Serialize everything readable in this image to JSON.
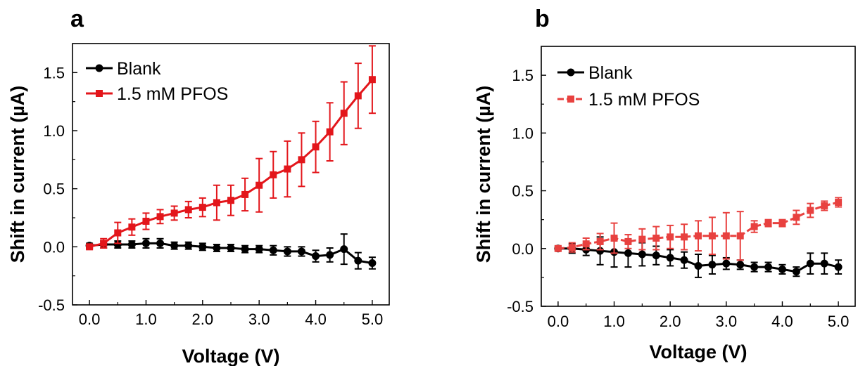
{
  "chart_data": [
    {
      "panel": "a",
      "type": "line",
      "xlabel": "Voltage (V)",
      "ylabel": "Shift in current (µA)",
      "xlim": [
        -0.3,
        5.3
      ],
      "ylim": [
        -0.5,
        1.75
      ],
      "xticks": [
        0,
        1,
        2,
        3,
        4,
        5
      ],
      "xtick_labels": [
        "0.0",
        "1.0",
        "2.0",
        "3.0",
        "4.0",
        "5.0"
      ],
      "yticks": [
        -0.5,
        0,
        0.5,
        1,
        1.5
      ],
      "ytick_labels": [
        "-0.5",
        "0.0",
        "0.5",
        "1.0",
        "1.5"
      ],
      "legend_position": "top-left",
      "x": [
        0,
        0.25,
        0.5,
        0.75,
        1.0,
        1.25,
        1.5,
        1.75,
        2.0,
        2.25,
        2.5,
        2.75,
        3.0,
        3.25,
        3.5,
        3.75,
        4.0,
        4.25,
        4.5,
        4.75,
        5.0
      ],
      "series": [
        {
          "name": "Blank",
          "color": "#000000",
          "marker": "circle",
          "values": [
            0.01,
            0.02,
            0.02,
            0.02,
            0.03,
            0.03,
            0.01,
            0.01,
            0.0,
            -0.01,
            -0.01,
            -0.02,
            -0.02,
            -0.03,
            -0.04,
            -0.04,
            -0.08,
            -0.07,
            -0.02,
            -0.12,
            -0.14
          ],
          "errors": [
            0.02,
            0.03,
            0.03,
            0.03,
            0.04,
            0.04,
            0.03,
            0.03,
            0.03,
            0.03,
            0.03,
            0.03,
            0.03,
            0.04,
            0.04,
            0.04,
            0.05,
            0.06,
            0.13,
            0.07,
            0.05
          ]
        },
        {
          "name": "1.5 mM PFOS",
          "color": "#e3161b",
          "marker": "square",
          "values": [
            0.0,
            0.03,
            0.12,
            0.17,
            0.22,
            0.26,
            0.29,
            0.32,
            0.34,
            0.38,
            0.4,
            0.45,
            0.53,
            0.62,
            0.67,
            0.75,
            0.86,
            0.99,
            1.15,
            1.3,
            1.44
          ],
          "errors": [
            0.02,
            0.04,
            0.09,
            0.07,
            0.07,
            0.06,
            0.06,
            0.07,
            0.08,
            0.15,
            0.13,
            0.14,
            0.23,
            0.2,
            0.24,
            0.23,
            0.22,
            0.25,
            0.27,
            0.28,
            0.29
          ]
        }
      ]
    },
    {
      "panel": "b",
      "type": "line",
      "xlabel": "Voltage (V)",
      "ylabel": "Shift in current (µA)",
      "xlim": [
        -0.3,
        5.3
      ],
      "ylim": [
        -0.5,
        1.75
      ],
      "xticks": [
        0,
        1,
        2,
        3,
        4,
        5
      ],
      "xtick_labels": [
        "0.0",
        "1.0",
        "2.0",
        "3.0",
        "4.0",
        "5.0"
      ],
      "yticks": [
        -0.5,
        0,
        0.5,
        1,
        1.5
      ],
      "ytick_labels": [
        "-0.5",
        "0.0",
        "0.5",
        "1.0",
        "1.5"
      ],
      "legend_position": "top-left",
      "x": [
        0,
        0.25,
        0.5,
        0.75,
        1.0,
        1.25,
        1.5,
        1.75,
        2.0,
        2.25,
        2.5,
        2.75,
        3.0,
        3.25,
        3.5,
        3.75,
        4.0,
        4.25,
        4.5,
        4.75,
        5.0
      ],
      "series": [
        {
          "name": "Blank",
          "color": "#000000",
          "marker": "circle",
          "values": [
            0.0,
            0.0,
            -0.01,
            -0.02,
            -0.03,
            -0.04,
            -0.05,
            -0.06,
            -0.08,
            -0.1,
            -0.15,
            -0.14,
            -0.13,
            -0.14,
            -0.16,
            -0.16,
            -0.18,
            -0.2,
            -0.13,
            -0.13,
            -0.16
          ],
          "errors": [
            0.02,
            0.04,
            0.05,
            0.12,
            0.13,
            0.12,
            0.1,
            0.08,
            0.07,
            0.07,
            0.1,
            0.08,
            0.05,
            0.04,
            0.04,
            0.04,
            0.04,
            0.04,
            0.09,
            0.09,
            0.06
          ]
        },
        {
          "name": "1.5 mM PFOS",
          "color": "#e8413f",
          "marker": "square",
          "values": [
            0.0,
            0.01,
            0.04,
            0.06,
            0.09,
            0.06,
            0.08,
            0.09,
            0.1,
            0.1,
            0.11,
            0.11,
            0.11,
            0.11,
            0.19,
            0.22,
            0.22,
            0.27,
            0.33,
            0.37,
            0.4
          ],
          "errors": [
            0.02,
            0.04,
            0.05,
            0.07,
            0.13,
            0.06,
            0.09,
            0.1,
            0.1,
            0.11,
            0.13,
            0.16,
            0.2,
            0.21,
            0.05,
            0.03,
            0.03,
            0.06,
            0.06,
            0.04,
            0.04
          ]
        }
      ]
    }
  ]
}
